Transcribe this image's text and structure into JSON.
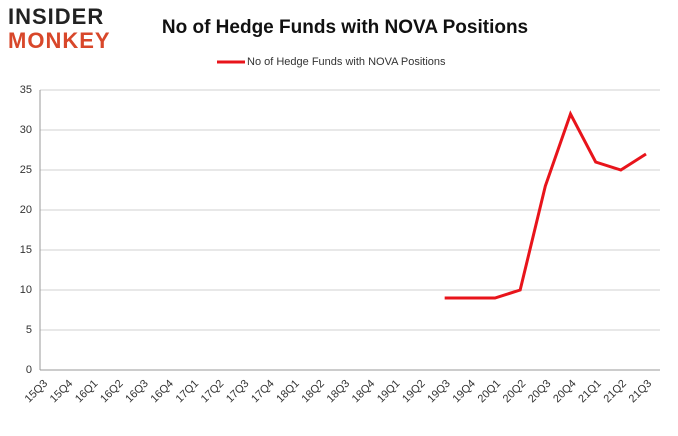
{
  "logo": {
    "line1": "INSIDER",
    "line2": "MONKEY"
  },
  "chart_data": {
    "type": "line",
    "title": "No of Hedge Funds with NOVA Positions",
    "categories": [
      "15Q3",
      "15Q4",
      "16Q1",
      "16Q2",
      "16Q3",
      "16Q4",
      "17Q1",
      "17Q2",
      "17Q3",
      "17Q4",
      "18Q1",
      "18Q2",
      "18Q3",
      "18Q4",
      "19Q1",
      "19Q2",
      "19Q3",
      "19Q4",
      "20Q1",
      "20Q2",
      "20Q3",
      "20Q4",
      "21Q1",
      "21Q2",
      "21Q3"
    ],
    "series": [
      {
        "name": "No of Hedge Funds with NOVA Positions",
        "color": "#e8141b",
        "values": [
          null,
          null,
          null,
          null,
          null,
          null,
          null,
          null,
          null,
          null,
          null,
          null,
          null,
          null,
          null,
          null,
          9,
          9,
          9,
          10,
          23,
          32,
          26,
          25,
          27
        ]
      }
    ],
    "ylim": [
      0,
      35
    ],
    "yticks": [
      0,
      5,
      10,
      15,
      20,
      25,
      30,
      35
    ],
    "grid": true,
    "legend": "top"
  }
}
